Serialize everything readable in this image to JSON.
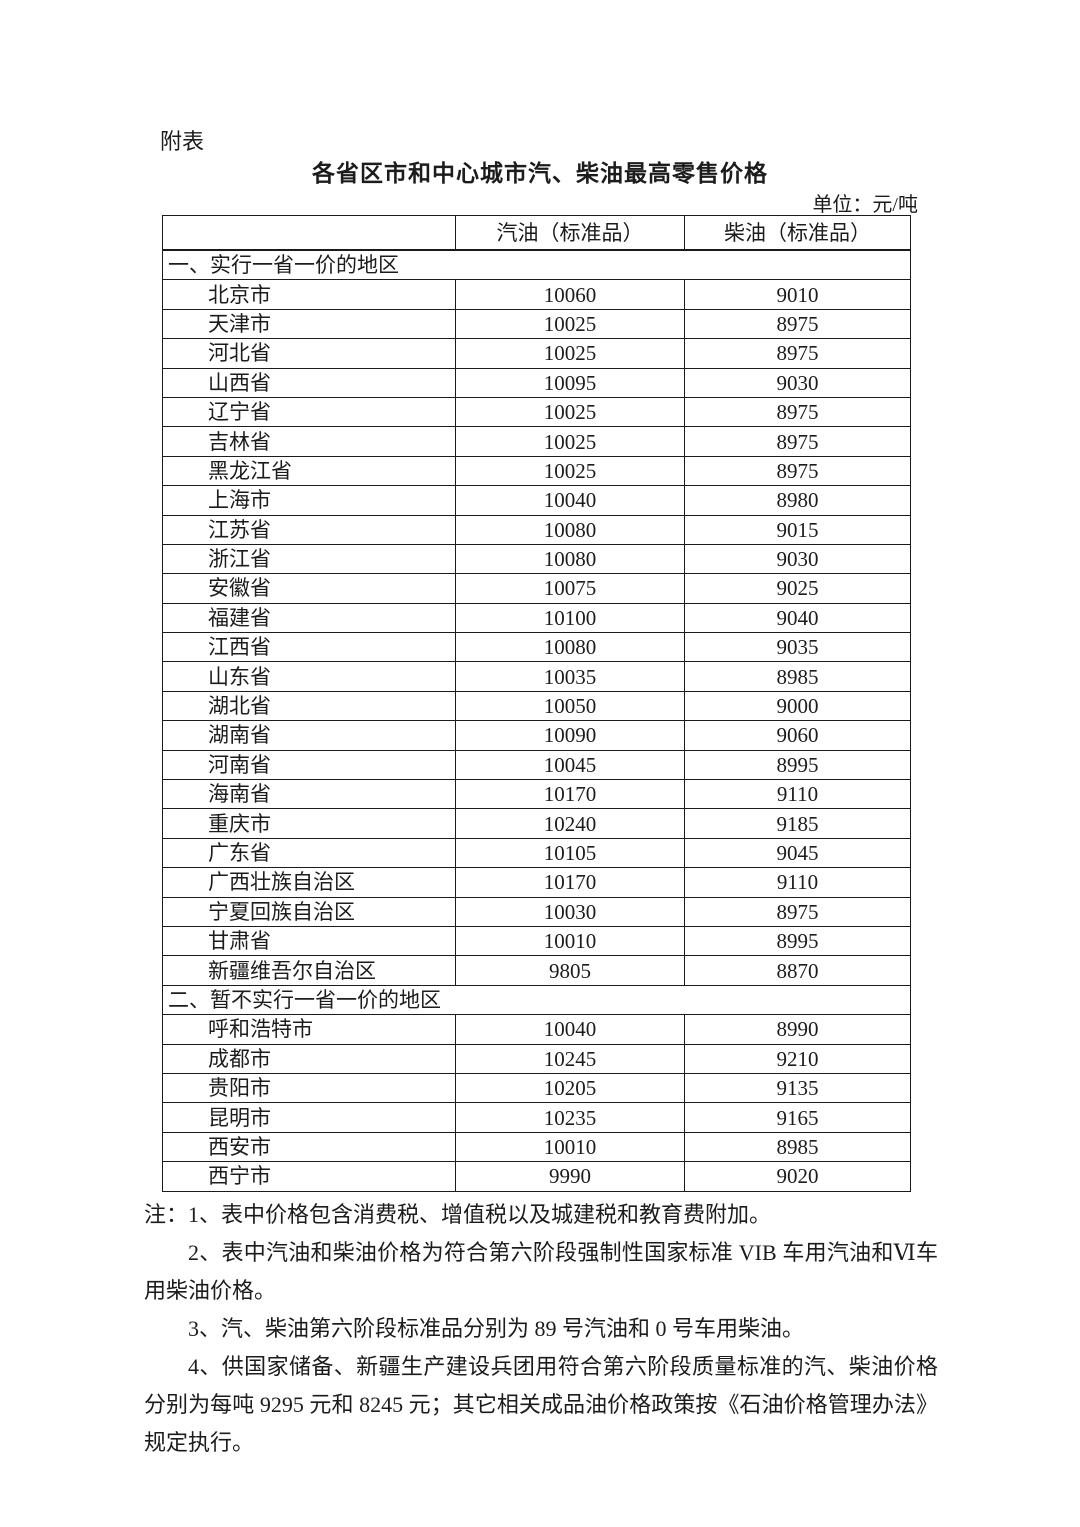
{
  "page": {
    "label": "附表",
    "title": "各省区市和中心城市汽、柴油最高零售价格",
    "unit": "单位：元/吨"
  },
  "table": {
    "columns": [
      "",
      "汽油（标准品）",
      "柴油（标准品）"
    ],
    "sections": [
      {
        "header": "一、实行一省一价的地区",
        "rows": [
          {
            "region": "北京市",
            "gasoline": "10060",
            "diesel": "9010"
          },
          {
            "region": "天津市",
            "gasoline": "10025",
            "diesel": "8975"
          },
          {
            "region": "河北省",
            "gasoline": "10025",
            "diesel": "8975"
          },
          {
            "region": "山西省",
            "gasoline": "10095",
            "diesel": "9030"
          },
          {
            "region": "辽宁省",
            "gasoline": "10025",
            "diesel": "8975"
          },
          {
            "region": "吉林省",
            "gasoline": "10025",
            "diesel": "8975"
          },
          {
            "region": "黑龙江省",
            "gasoline": "10025",
            "diesel": "8975"
          },
          {
            "region": "上海市",
            "gasoline": "10040",
            "diesel": "8980"
          },
          {
            "region": "江苏省",
            "gasoline": "10080",
            "diesel": "9015"
          },
          {
            "region": "浙江省",
            "gasoline": "10080",
            "diesel": "9030"
          },
          {
            "region": "安徽省",
            "gasoline": "10075",
            "diesel": "9025"
          },
          {
            "region": "福建省",
            "gasoline": "10100",
            "diesel": "9040"
          },
          {
            "region": "江西省",
            "gasoline": "10080",
            "diesel": "9035"
          },
          {
            "region": "山东省",
            "gasoline": "10035",
            "diesel": "8985"
          },
          {
            "region": "湖北省",
            "gasoline": "10050",
            "diesel": "9000"
          },
          {
            "region": "湖南省",
            "gasoline": "10090",
            "diesel": "9060"
          },
          {
            "region": "河南省",
            "gasoline": "10045",
            "diesel": "8995"
          },
          {
            "region": "海南省",
            "gasoline": "10170",
            "diesel": "9110"
          },
          {
            "region": "重庆市",
            "gasoline": "10240",
            "diesel": "9185"
          },
          {
            "region": "广东省",
            "gasoline": "10105",
            "diesel": "9045"
          },
          {
            "region": "广西壮族自治区",
            "gasoline": "10170",
            "diesel": "9110"
          },
          {
            "region": "宁夏回族自治区",
            "gasoline": "10030",
            "diesel": "8975"
          },
          {
            "region": "甘肃省",
            "gasoline": "10010",
            "diesel": "8995"
          },
          {
            "region": "新疆维吾尔自治区",
            "gasoline": "9805",
            "diesel": "8870"
          }
        ]
      },
      {
        "header": "二、暂不实行一省一价的地区",
        "rows": [
          {
            "region": "呼和浩特市",
            "gasoline": "10040",
            "diesel": "8990"
          },
          {
            "region": "成都市",
            "gasoline": "10245",
            "diesel": "9210"
          },
          {
            "region": "贵阳市",
            "gasoline": "10205",
            "diesel": "9135"
          },
          {
            "region": "昆明市",
            "gasoline": "10235",
            "diesel": "9165"
          },
          {
            "region": "西安市",
            "gasoline": "10010",
            "diesel": "8985"
          },
          {
            "region": "西宁市",
            "gasoline": "9990",
            "diesel": "9020"
          }
        ]
      }
    ]
  },
  "notes": [
    "注：1、表中价格包含消费税、增值税以及城建税和教育费附加。",
    "2、表中汽油和柴油价格为符合第六阶段强制性国家标准 VIB 车用汽油和Ⅵ车用柴油价格。",
    "3、汽、柴油第六阶段标准品分别为 89 号汽油和 0 号车用柴油。",
    "4、供国家储备、新疆生产建设兵团用符合第六阶段质量标准的汽、柴油价格分别为每吨 9295 元和 8245 元；其它相关成品油价格政策按《石油价格管理办法》规定执行。"
  ]
}
